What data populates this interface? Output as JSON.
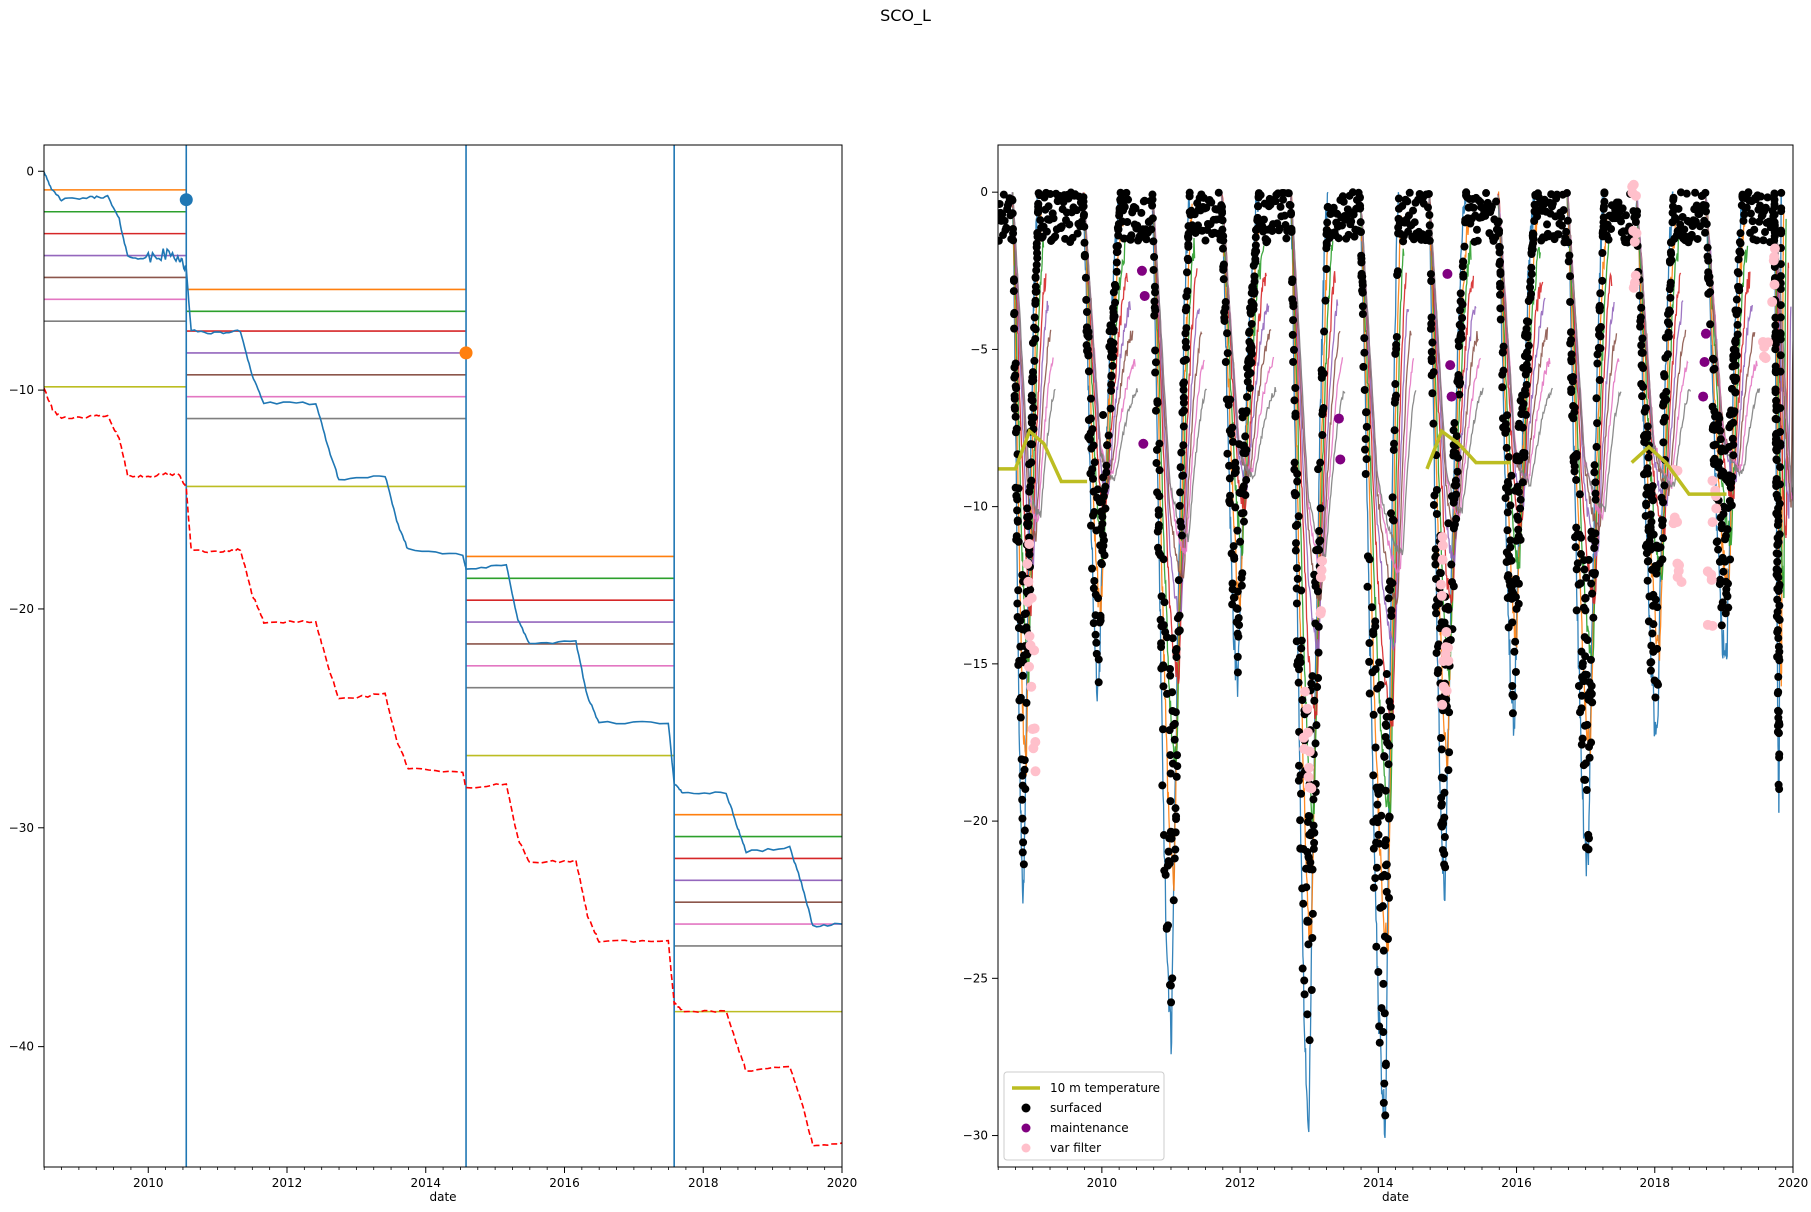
{
  "figure": {
    "suptitle": "SCO_L"
  },
  "colors": {
    "blue": "#1f77b4",
    "orange": "#ff7f0e",
    "green": "#2ca02c",
    "red": "#d62728",
    "purple": "#9467bd",
    "brown": "#8c564b",
    "pink": "#e377c2",
    "gray": "#7f7f7f",
    "olive": "#bcbd22",
    "dashed_red": "#ff0000",
    "black": "#000000",
    "maintenance": "#800080",
    "var_filter": "#ffc0cb"
  },
  "chart_data": [
    {
      "type": "line",
      "xlabel": "date",
      "ylabel": "",
      "xlim": [
        "2008-07-01",
        "2020-01-01"
      ],
      "ylim": [
        -45.5,
        1.2
      ],
      "x_ticks": [
        "2010",
        "2012",
        "2014",
        "2016",
        "2018",
        "2020"
      ],
      "y_ticks": [
        "0",
        "−10",
        "−20",
        "−30",
        "−40"
      ],
      "vertical_lines": [
        "2010-07-20",
        "2014-08-01",
        "2017-08-01"
      ],
      "markers": [
        {
          "x": "2010-07-20",
          "y": -1.3,
          "color": "blue"
        },
        {
          "x": "2014-08-01",
          "y": -8.3,
          "color": "orange"
        }
      ],
      "series": [
        {
          "color": "blue",
          "style": "solid",
          "points": [
            [
              "2008-07-01",
              0
            ],
            [
              "2008-08-15",
              -0.9
            ],
            [
              "2008-10-01",
              -1.3
            ],
            [
              "2009-03-01",
              -1.2
            ],
            [
              "2009-06-01",
              -1.15
            ],
            [
              "2009-08-01",
              -2.2
            ],
            [
              "2009-09-15",
              -3.9
            ],
            [
              "2010-01-01",
              -4.0
            ],
            [
              "2010-04-01",
              -3.8
            ],
            [
              "2010-06-15",
              -3.9
            ],
            [
              "2010-07-20",
              -4.5
            ],
            [
              "2010-08-15",
              -7.3
            ],
            [
              "2011-01-01",
              -7.4
            ],
            [
              "2011-05-01",
              -7.3
            ],
            [
              "2011-07-01",
              -9.3
            ],
            [
              "2011-09-01",
              -10.6
            ],
            [
              "2012-06-01",
              -10.6
            ],
            [
              "2012-08-01",
              -12.5
            ],
            [
              "2012-10-01",
              -14.1
            ],
            [
              "2013-06-01",
              -13.9
            ],
            [
              "2013-08-01",
              -16.0
            ],
            [
              "2013-10-01",
              -17.3
            ],
            [
              "2014-07-15",
              -17.5
            ],
            [
              "2014-08-01",
              -18.2
            ],
            [
              "2015-03-01",
              -18.0
            ],
            [
              "2015-05-01",
              -20.5
            ],
            [
              "2015-07-01",
              -21.6
            ],
            [
              "2016-03-01",
              -21.5
            ],
            [
              "2016-05-01",
              -24.0
            ],
            [
              "2016-07-01",
              -25.2
            ],
            [
              "2017-07-01",
              -25.2
            ],
            [
              "2017-08-01",
              -28.0
            ],
            [
              "2017-09-15",
              -28.4
            ],
            [
              "2018-05-01",
              -28.4
            ],
            [
              "2018-07-01",
              -30.0
            ],
            [
              "2018-08-15",
              -31.1
            ],
            [
              "2019-04-01",
              -30.9
            ],
            [
              "2019-06-01",
              -32.5
            ],
            [
              "2019-08-01",
              -34.5
            ],
            [
              "2020-01-01",
              -34.4
            ]
          ]
        },
        {
          "color": "dashed_red",
          "style": "dashed",
          "points": [
            [
              "2008-07-01",
              -9.9
            ],
            [
              "2008-08-15",
              -10.9
            ],
            [
              "2008-10-01",
              -11.3
            ],
            [
              "2009-03-01",
              -11.2
            ],
            [
              "2009-06-01",
              -11.15
            ],
            [
              "2009-08-01",
              -12.2
            ],
            [
              "2009-09-15",
              -13.9
            ],
            [
              "2010-01-01",
              -14.0
            ],
            [
              "2010-04-01",
              -13.8
            ],
            [
              "2010-06-15",
              -13.9
            ],
            [
              "2010-07-20",
              -14.5
            ],
            [
              "2010-08-15",
              -17.3
            ],
            [
              "2011-01-01",
              -17.4
            ],
            [
              "2011-05-01",
              -17.3
            ],
            [
              "2011-07-01",
              -19.3
            ],
            [
              "2011-09-01",
              -20.6
            ],
            [
              "2012-06-01",
              -20.6
            ],
            [
              "2012-08-01",
              -22.5
            ],
            [
              "2012-10-01",
              -24.1
            ],
            [
              "2013-06-01",
              -23.9
            ],
            [
              "2013-08-01",
              -26.0
            ],
            [
              "2013-10-01",
              -27.3
            ],
            [
              "2014-07-15",
              -27.5
            ],
            [
              "2014-08-01",
              -28.2
            ],
            [
              "2015-03-01",
              -28.0
            ],
            [
              "2015-05-01",
              -30.5
            ],
            [
              "2015-07-01",
              -31.6
            ],
            [
              "2016-03-01",
              -31.5
            ],
            [
              "2016-05-01",
              -34.0
            ],
            [
              "2016-07-01",
              -35.2
            ],
            [
              "2017-07-01",
              -35.2
            ],
            [
              "2017-08-01",
              -38.0
            ],
            [
              "2017-09-15",
              -38.4
            ],
            [
              "2018-05-01",
              -38.4
            ],
            [
              "2018-07-01",
              -40.0
            ],
            [
              "2018-08-15",
              -41.1
            ],
            [
              "2019-04-01",
              -40.9
            ],
            [
              "2019-06-01",
              -42.5
            ],
            [
              "2019-08-01",
              -44.5
            ],
            [
              "2020-01-01",
              -44.4
            ]
          ]
        }
      ],
      "sensor_levels": [
        {
          "x0": "2008-07-01",
          "x1": "2010-07-20",
          "orange": -0.85,
          "green": -1.85,
          "red": -2.85,
          "purple": -3.85,
          "brown": -4.85,
          "pink": -5.85,
          "gray": -6.85,
          "olive": -9.85
        },
        {
          "x0": "2010-07-20",
          "x1": "2014-08-01",
          "orange": -5.4,
          "green": -6.4,
          "red": -7.3,
          "purple": -8.3,
          "brown": -9.3,
          "pink": -10.3,
          "gray": -11.3,
          "olive": -14.4
        },
        {
          "x0": "2014-08-01",
          "x1": "2017-08-01",
          "orange": -17.6,
          "green": -18.6,
          "red": -19.6,
          "purple": -20.6,
          "brown": -21.6,
          "pink": -22.6,
          "gray": -23.6,
          "olive": -26.7
        },
        {
          "x0": "2017-08-01",
          "x1": "2020-01-01",
          "orange": -29.4,
          "green": -30.4,
          "red": -31.4,
          "purple": -32.4,
          "brown": -33.4,
          "pink": -34.4,
          "gray": -35.4,
          "olive": -38.4
        }
      ]
    },
    {
      "type": "line",
      "xlabel": "date",
      "ylabel": "",
      "xlim": [
        "2008-07-01",
        "2020-01-01"
      ],
      "ylim": [
        -31,
        1.5
      ],
      "x_ticks": [
        "2010",
        "2012",
        "2014",
        "2016",
        "2018",
        "2020"
      ],
      "y_ticks": [
        "0",
        "−5",
        "−10",
        "−15",
        "−20",
        "−25",
        "−30"
      ],
      "legend": {
        "placement": "lower-left",
        "entries": [
          {
            "label": "10 m temperature",
            "kind": "line",
            "color": "olive"
          },
          {
            "label": "surfaced",
            "kind": "marker",
            "color": "black"
          },
          {
            "label": "maintenance",
            "kind": "marker",
            "color": "maintenance"
          },
          {
            "label": "var filter",
            "kind": "marker",
            "color": "var_filter"
          }
        ]
      },
      "winter_minima": [
        {
          "start": "2008-09-15",
          "min_date": "2008-11-15",
          "end": "2009-02-01",
          "min": -22.5
        },
        {
          "start": "2009-09-25",
          "min_date": "2009-12-15",
          "end": "2010-04-10",
          "min": -16
        },
        {
          "start": "2010-09-25",
          "min_date": "2011-01-05",
          "end": "2011-04-10",
          "min": -26.8
        },
        {
          "start": "2011-09-25",
          "min_date": "2011-12-20",
          "end": "2012-04-10",
          "min": -15.5
        },
        {
          "start": "2012-09-25",
          "min_date": "2013-01-01",
          "end": "2013-04-10",
          "min": -29.5
        },
        {
          "start": "2013-09-25",
          "min_date": "2014-02-10",
          "end": "2014-04-20",
          "min": -29.5
        },
        {
          "start": "2014-09-25",
          "min_date": "2014-12-20",
          "end": "2015-04-10",
          "min": -22
        },
        {
          "start": "2015-09-25",
          "min_date": "2015-12-20",
          "end": "2016-04-10",
          "min": -16.8
        },
        {
          "start": "2016-09-25",
          "min_date": "2017-01-15",
          "end": "2017-04-10",
          "min": -21.5
        },
        {
          "start": "2017-09-25",
          "min_date": "2018-01-15",
          "end": "2018-04-10",
          "min": -17.3
        },
        {
          "start": "2018-09-25",
          "min_date": "2019-01-15",
          "end": "2019-04-10",
          "min": -15
        },
        {
          "start": "2019-09-25",
          "min_date": "2019-10-20",
          "end": "2019-10-31",
          "min": -19.3
        }
      ],
      "ten_m_temperature": [
        {
          "points": [
            [
              "2008-07-01",
              -8.8
            ],
            [
              "2008-10-01",
              -8.8
            ],
            [
              "2008-12-15",
              -7.6
            ],
            [
              "2009-03-01",
              -8.0
            ],
            [
              "2009-06-01",
              -9.2
            ],
            [
              "2009-10-15",
              -9.2
            ]
          ]
        },
        {
          "points": [
            [
              "2014-09-15",
              -8.8
            ],
            [
              "2014-12-01",
              -7.6
            ],
            [
              "2015-03-01",
              -8.0
            ],
            [
              "2015-06-01",
              -8.6
            ],
            [
              "2015-11-30",
              -8.6
            ]
          ]
        },
        {
          "points": [
            [
              "2017-09-01",
              -8.6
            ],
            [
              "2017-12-01",
              -8.1
            ],
            [
              "2018-03-01",
              -8.6
            ],
            [
              "2018-07-01",
              -9.6
            ],
            [
              "2019-01-15",
              -9.6
            ]
          ]
        }
      ]
    }
  ]
}
